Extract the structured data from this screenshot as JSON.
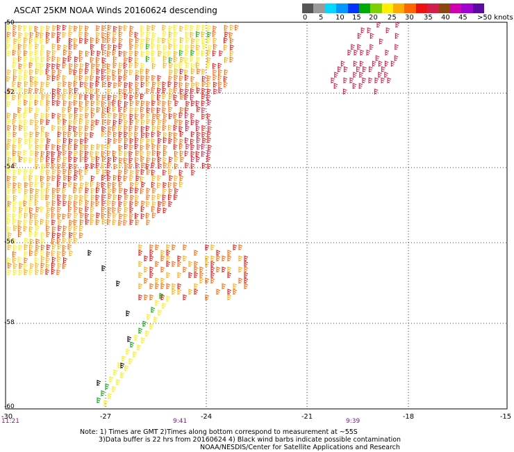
{
  "title": "ASCAT 25KM NOAA Winds 20160624 descending",
  "legend": {
    "labels": [
      "0",
      "5",
      "10",
      "15",
      "20",
      "25",
      "30",
      "35",
      "40",
      "45",
      ">50 knots"
    ],
    "colors": [
      "#555555",
      "#9a9a9a",
      "#00d8ff",
      "#0099ff",
      "#0033ff",
      "#00aa00",
      "#7fd000",
      "#ffee00",
      "#ffaa00",
      "#ff6600",
      "#ee1111",
      "#d0204a",
      "#8b4513",
      "#d000b0",
      "#a000d0",
      "#5a0aa0"
    ]
  },
  "axes": {
    "lat_labels": [
      "-50",
      "-52",
      "-54",
      "-56",
      "-58",
      "-60"
    ],
    "lon_labels": [
      "-30",
      "-27",
      "-24",
      "-21",
      "-18",
      "-15"
    ]
  },
  "times": {
    "t1": "11:21",
    "t2": "9:41",
    "t3": "9:39"
  },
  "notes": {
    "line1": "Note: 1) Times are GMT 2)Times along bottom correspond to measurement at ~55S",
    "line2": "3)Data buffer is 22 hrs from 20160624 4) Black wind barbs indicate possible contamination",
    "line3": "NOAA/NESDIS/Center for Satellite Applications and Research"
  }
}
